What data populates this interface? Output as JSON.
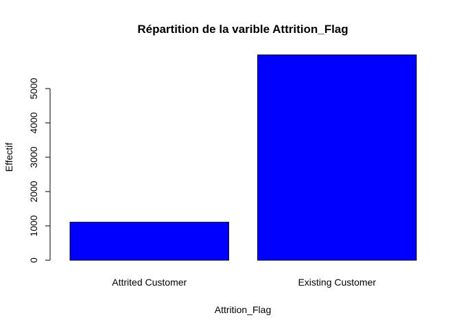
{
  "chart_data": {
    "type": "bar",
    "title": "Répartition de la varible Attrition_Flag",
    "xlabel": "Attrition_Flag",
    "ylabel": "Effectif",
    "categories": [
      "Attrited Customer",
      "Existing Customer"
    ],
    "values": [
      1107,
      5981
    ],
    "ylim": [
      0,
      6000
    ],
    "yticks": [
      0,
      1000,
      2000,
      3000,
      4000,
      5000
    ],
    "bar_color": "#0000FF",
    "grid": false,
    "legend": "none"
  }
}
